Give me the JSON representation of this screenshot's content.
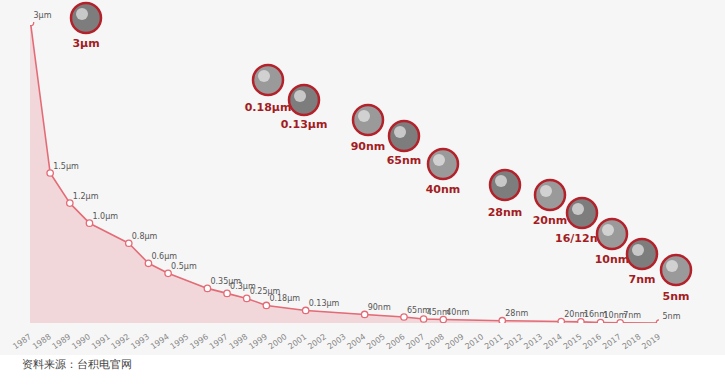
{
  "chart_data": {
    "type": "line",
    "x": [
      1987,
      1988,
      1989,
      1990,
      1992,
      1993,
      1994,
      1996,
      1997,
      1998,
      1999,
      2001,
      2004,
      2006,
      2007,
      2008,
      2011,
      2014,
      2015,
      2016,
      2017,
      2019
    ],
    "values": [
      3000,
      1500,
      1200,
      1000,
      800,
      600,
      500,
      350,
      300,
      250,
      180,
      130,
      90,
      65,
      45,
      40,
      28,
      20,
      16,
      10,
      7,
      5
    ],
    "value_labels": [
      "3μm",
      "1.5μm",
      "1.2μm",
      "1.0μm",
      "0.8μm",
      "0.6μm",
      "0.5μm",
      "0.35μm",
      "0.3μm",
      "0.25μm",
      "0.18μm",
      "0.13μm",
      "90nm",
      "65nm",
      "45nm",
      "40nm",
      "28nm",
      "20nm",
      "16nm",
      "10nm",
      "7nm",
      "5nm"
    ],
    "color": "#e36b76",
    "marker": "circle",
    "data_labels": true,
    "tick_labels": "x",
    "xlim": [
      1987,
      2019
    ],
    "xticks": [
      1987,
      1988,
      1989,
      1990,
      1991,
      1992,
      1993,
      1994,
      1995,
      1996,
      1997,
      1998,
      1999,
      2000,
      2001,
      2002,
      2003,
      2004,
      2005,
      2006,
      2007,
      2008,
      2009,
      2010,
      2011,
      2012,
      2013,
      2014,
      2015,
      2016,
      2017,
      2018,
      2019
    ],
    "ylim": [
      0,
      3000
    ],
    "annotations": [
      "3μm",
      "0.18μm",
      "0.13μm",
      "90nm",
      "65nm",
      "40nm",
      "28nm",
      "20nm",
      "16/12nm",
      "10nm",
      "7nm",
      "5nm"
    ],
    "caption": "资料来源：台积电官网"
  }
}
